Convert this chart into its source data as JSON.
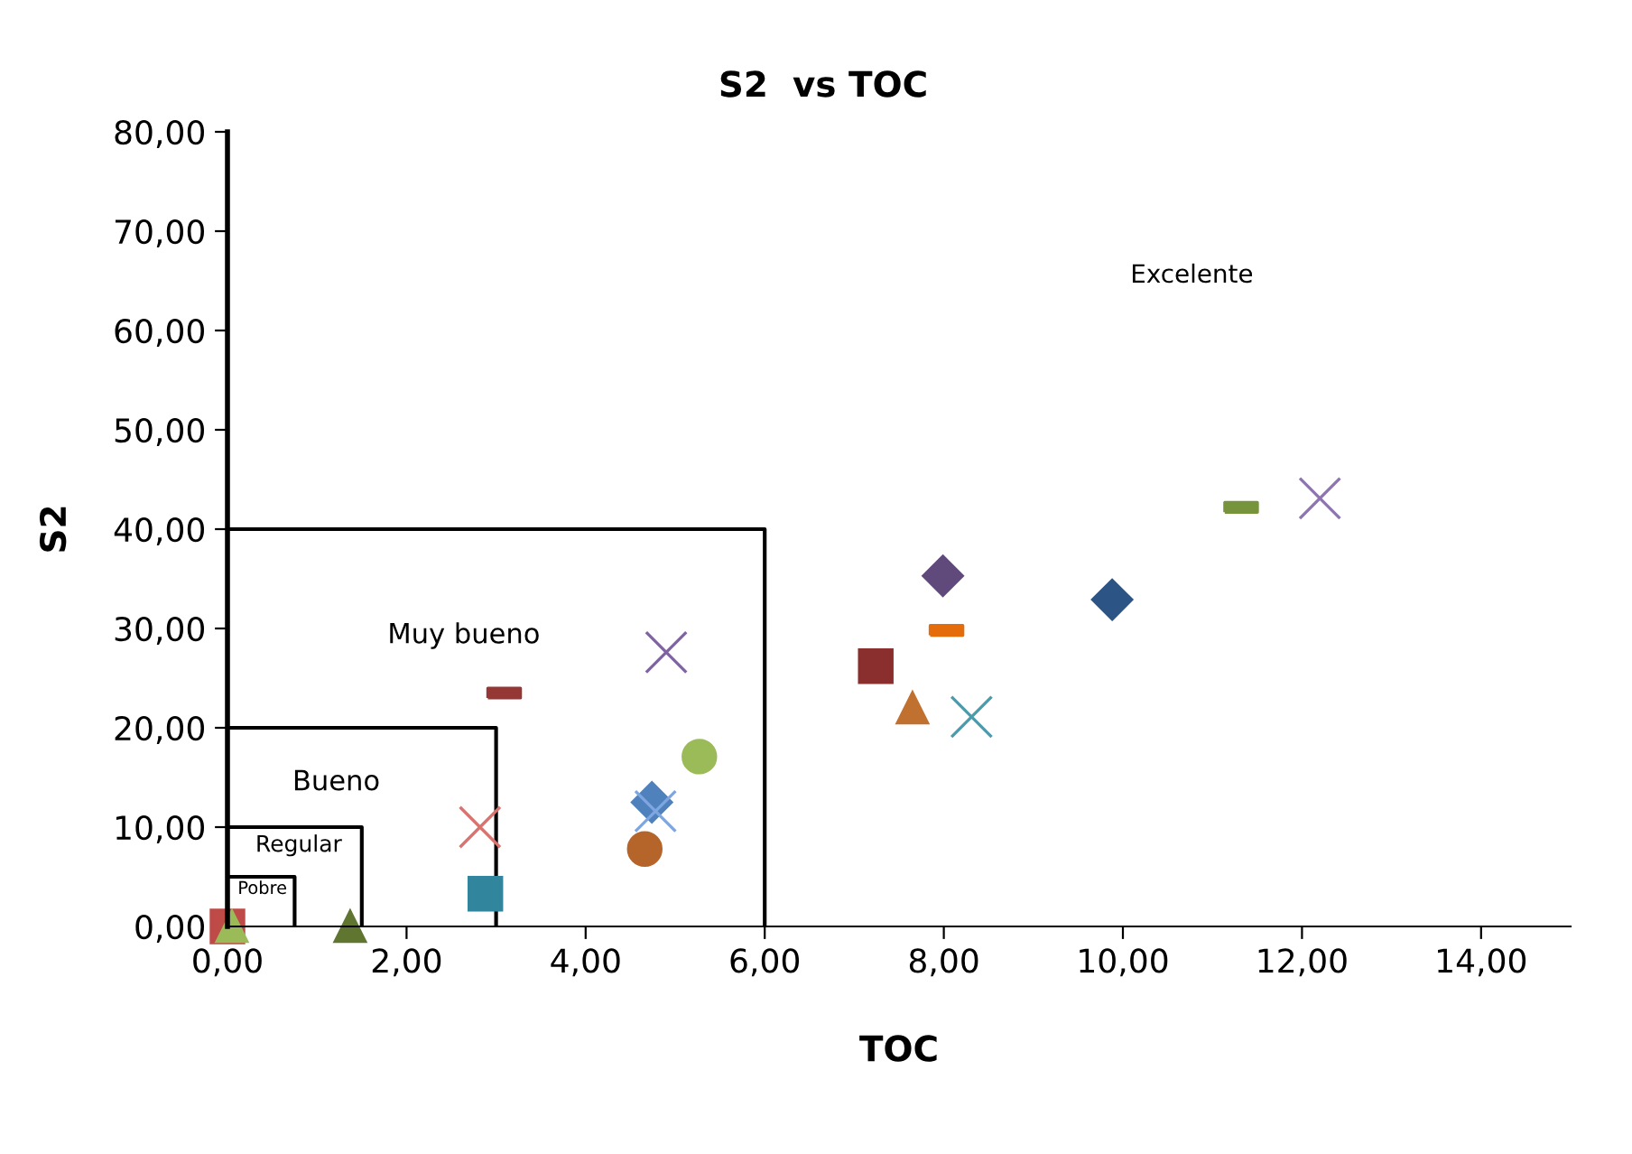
{
  "chart_data": {
    "type": "scatter",
    "title": "S2  vs TOC",
    "xlabel": "TOC",
    "ylabel": "S2",
    "xlim": [
      0,
      15
    ],
    "ylim": [
      0,
      80
    ],
    "xticks": [
      {
        "value": 0,
        "label": "0,00"
      },
      {
        "value": 2,
        "label": "2,00"
      },
      {
        "value": 4,
        "label": "4,00"
      },
      {
        "value": 6,
        "label": "6,00"
      },
      {
        "value": 8,
        "label": "8,00"
      },
      {
        "value": 10,
        "label": "10,00"
      },
      {
        "value": 12,
        "label": "12,00"
      },
      {
        "value": 14,
        "label": "14,00"
      }
    ],
    "yticks": [
      {
        "value": 0,
        "label": "0,00"
      },
      {
        "value": 10,
        "label": "10,00"
      },
      {
        "value": 20,
        "label": "20,00"
      },
      {
        "value": 30,
        "label": "30,00"
      },
      {
        "value": 40,
        "label": "40,00"
      },
      {
        "value": 50,
        "label": "50,00"
      },
      {
        "value": 60,
        "label": "60,00"
      },
      {
        "value": 70,
        "label": "70,00"
      },
      {
        "value": 80,
        "label": "80,00"
      }
    ],
    "grid": false,
    "legend": false,
    "series": [
      {
        "type": "line",
        "color": "#000000",
        "x": [
          0,
          0.75,
          0.75
        ],
        "values": [
          5,
          5,
          0
        ],
        "marker": "none"
      },
      {
        "type": "line",
        "color": "#000000",
        "x": [
          0,
          1.5,
          1.5
        ],
        "values": [
          10,
          10,
          0
        ],
        "marker": "none"
      },
      {
        "type": "line",
        "color": "#000000",
        "x": [
          0,
          3,
          3
        ],
        "values": [
          20,
          20,
          0
        ],
        "marker": "none"
      },
      {
        "type": "line",
        "color": "#000000",
        "x": [
          0,
          6,
          6
        ],
        "values": [
          40,
          40,
          0
        ],
        "marker": "none"
      },
      {
        "color": "#be4b48",
        "x": [
          0.0
        ],
        "values": [
          0.0
        ],
        "marker": "square"
      },
      {
        "color": "#9bbb59",
        "x": [
          0.05
        ],
        "values": [
          0.0
        ],
        "marker": "triangle"
      },
      {
        "color": "#5f7530",
        "x": [
          1.37
        ],
        "values": [
          0.0
        ],
        "marker": "triangle"
      },
      {
        "color": "#31859c",
        "x": [
          2.88
        ],
        "values": [
          3.3
        ],
        "marker": "square"
      },
      {
        "color": "#d9736f",
        "x": [
          2.82
        ],
        "values": [
          10.0
        ],
        "marker": "cross"
      },
      {
        "color": "#953735",
        "x": [
          3.09
        ],
        "values": [
          23.5
        ]
      },
      {
        "color": "#8064a2",
        "x": [
          4.9
        ],
        "values": [
          27.6
        ],
        "marker": "cross"
      },
      {
        "color": "#9bbb59",
        "x": [
          5.27
        ],
        "values": [
          17.1
        ],
        "marker": "circle"
      },
      {
        "color": "#4f81bd",
        "x": [
          4.74
        ],
        "values": [
          12.5
        ],
        "marker": "diamond"
      },
      {
        "color": "#7ea6e0",
        "x": [
          4.78
        ],
        "values": [
          11.6
        ],
        "marker": "cross"
      },
      {
        "color": "#b5642a",
        "x": [
          4.66
        ],
        "values": [
          7.8
        ],
        "marker": "circle"
      },
      {
        "color": "#604a7b",
        "x": [
          7.99
        ],
        "values": [
          35.3
        ],
        "marker": "diamond"
      },
      {
        "color": "#e46c0a",
        "x": [
          8.03
        ],
        "values": [
          29.8
        ]
      },
      {
        "color": "#8b2e2e",
        "x": [
          7.24
        ],
        "values": [
          26.2
        ],
        "marker": "square"
      },
      {
        "color": "#c0712f",
        "x": [
          7.65
        ],
        "values": [
          22.0
        ],
        "marker": "triangle"
      },
      {
        "color": "#4a9bac",
        "x": [
          8.31
        ],
        "values": [
          21.1
        ],
        "marker": "cross"
      },
      {
        "color": "#2c5585",
        "x": [
          9.88
        ],
        "values": [
          32.9
        ],
        "marker": "diamond"
      },
      {
        "color": "#77933c",
        "x": [
          11.32
        ],
        "values": [
          42.2
        ]
      },
      {
        "color": "#8e74b0",
        "x": [
          12.2
        ],
        "values": [
          43.1
        ],
        "marker": "cross"
      }
    ],
    "annotations": [
      "Pobre",
      "Regular",
      "Bueno",
      "Muy bueno",
      "Excelente"
    ]
  }
}
